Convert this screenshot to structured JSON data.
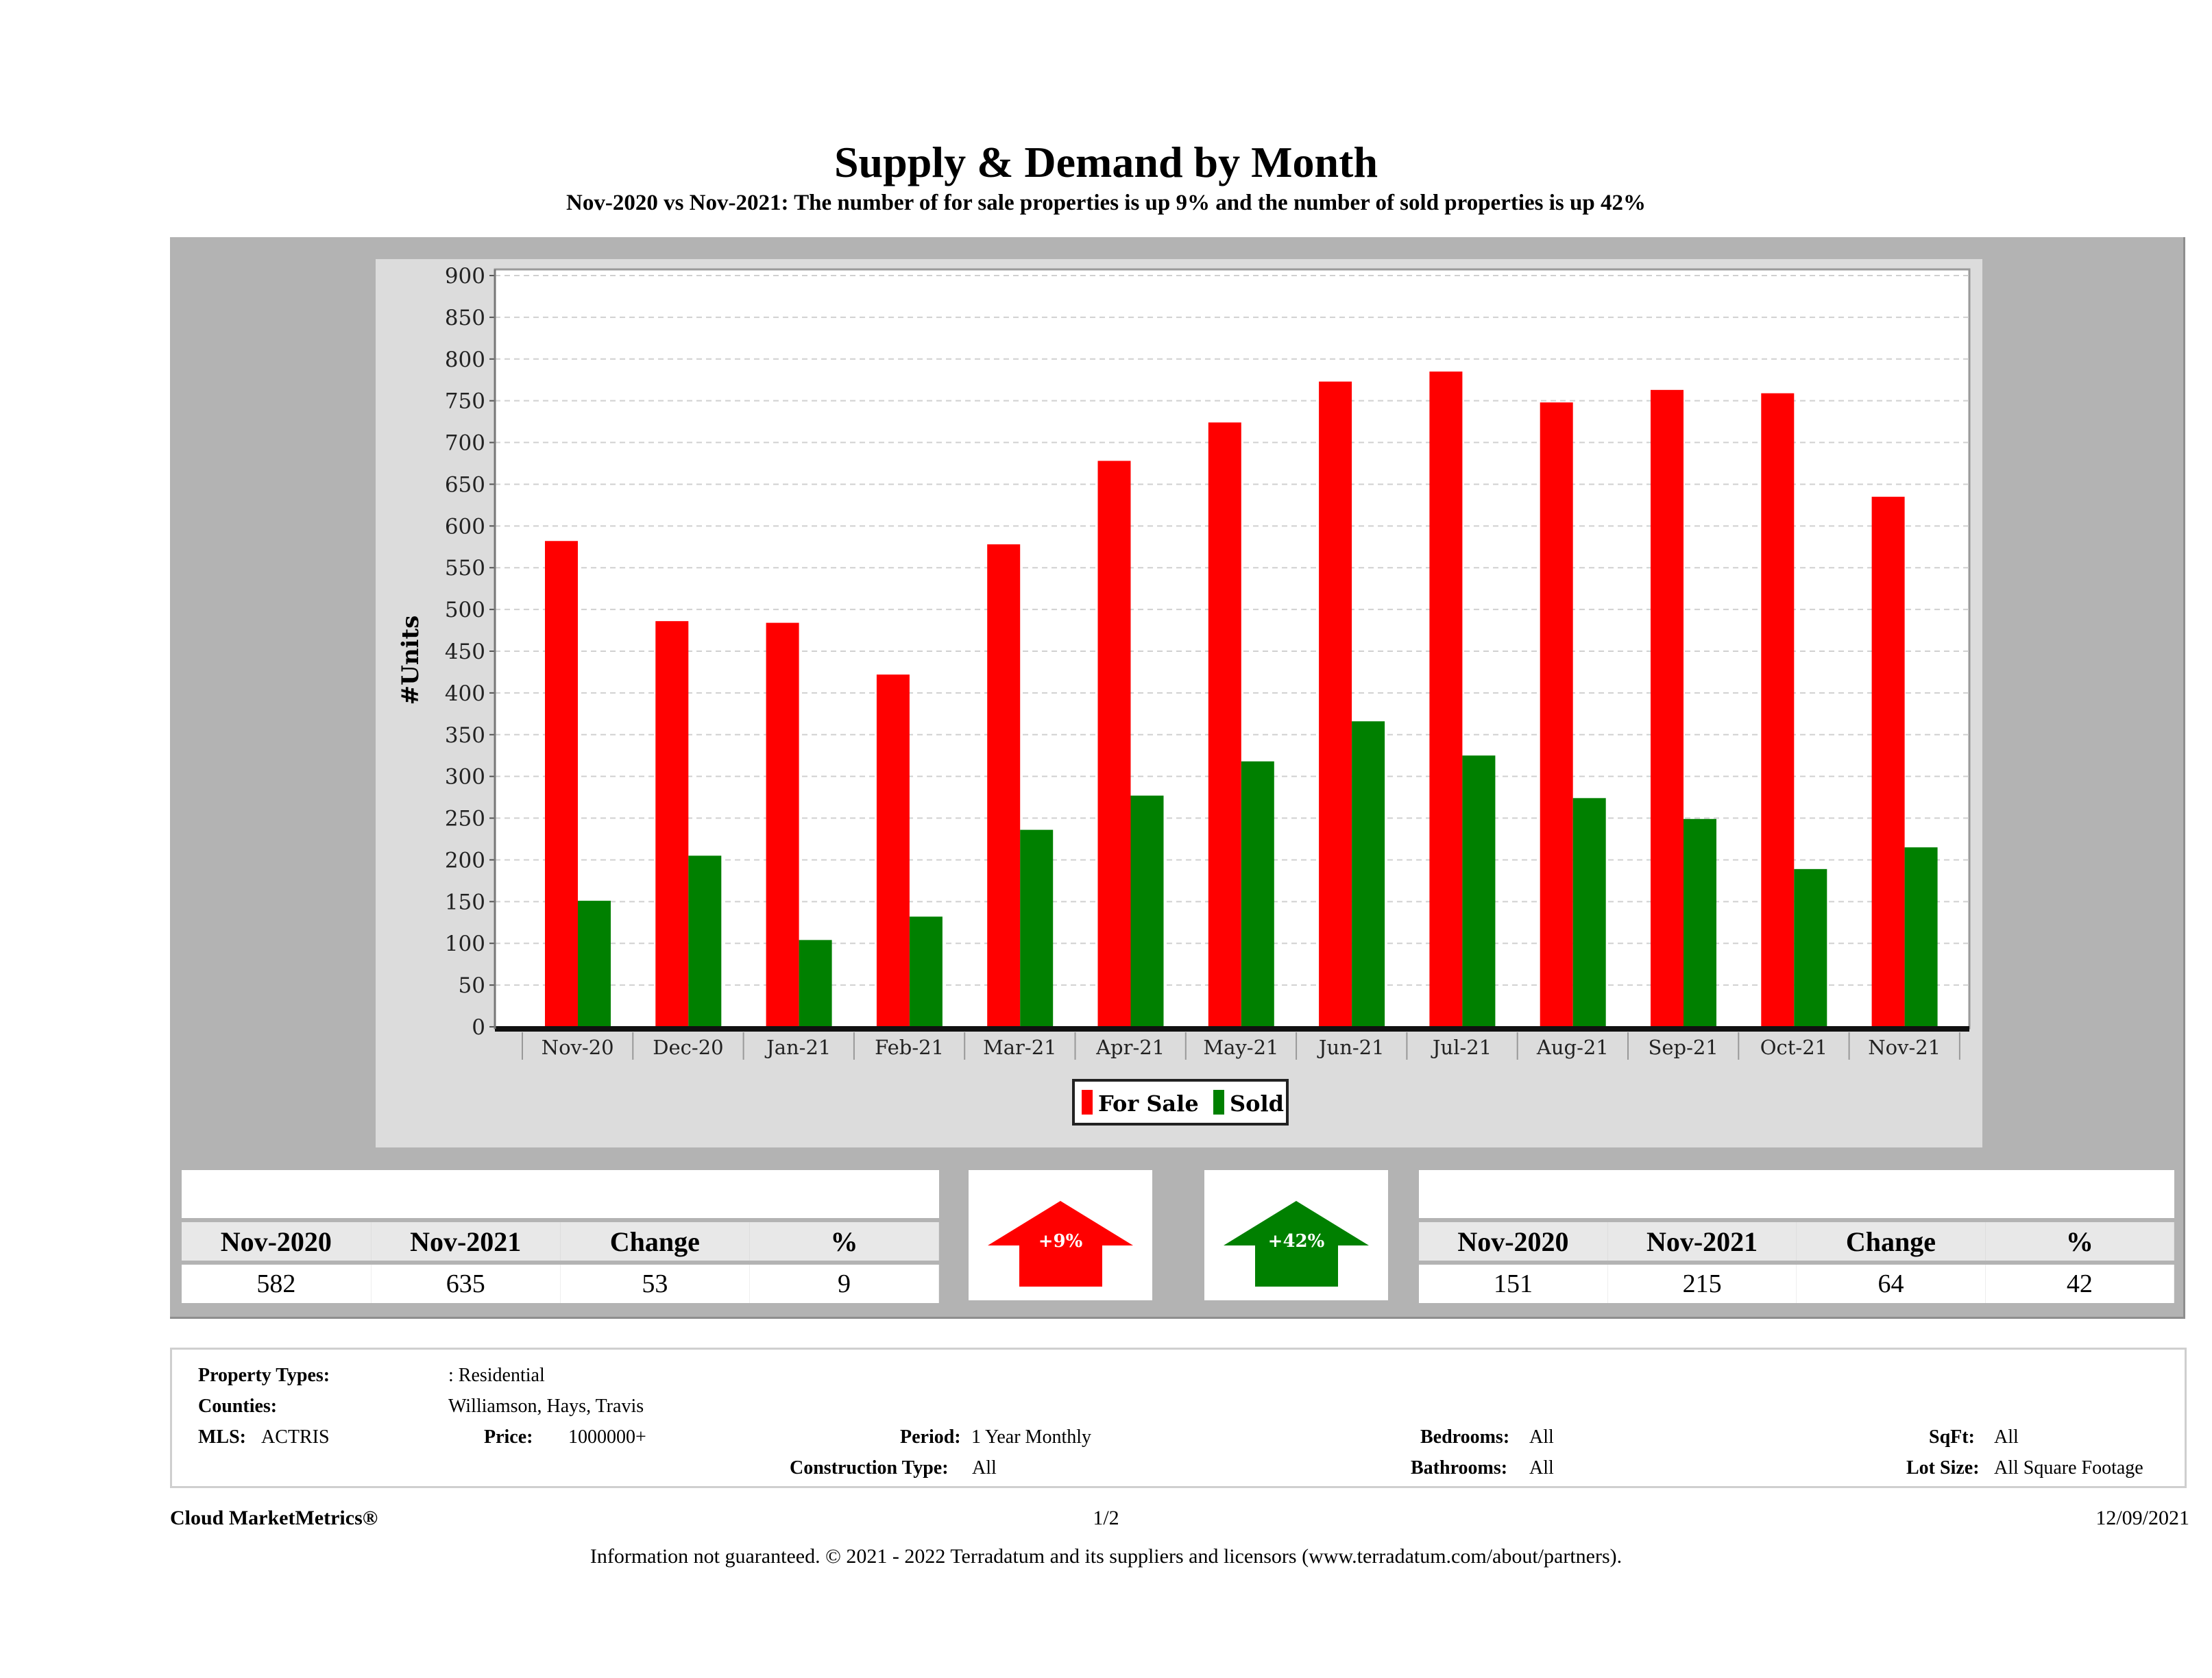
{
  "header": {
    "title": "Supply & Demand by Month",
    "subtitle": "Nov-2020 vs Nov-2021: The number of for sale properties is up 9% and the number of sold properties is up 42%"
  },
  "chart_data": {
    "type": "bar",
    "title": "Supply & Demand by Month",
    "ylabel": "#Units",
    "xlabel": "",
    "ylim": [
      0,
      900
    ],
    "yticks": [
      "0",
      "50",
      "100",
      "150",
      "200",
      "250",
      "300",
      "350",
      "400",
      "450",
      "500",
      "550",
      "600",
      "650",
      "700",
      "750",
      "800",
      "850",
      "900"
    ],
    "grid": true,
    "legend_position": "bottom-center",
    "categories": [
      "Nov-20",
      "Dec-20",
      "Jan-21",
      "Feb-21",
      "Mar-21",
      "Apr-21",
      "May-21",
      "Jun-21",
      "Jul-21",
      "Aug-21",
      "Sep-21",
      "Oct-21",
      "Nov-21"
    ],
    "series": [
      {
        "name": "For Sale",
        "color": "#ff0000",
        "values": [
          582,
          486,
          484,
          422,
          578,
          678,
          724,
          773,
          785,
          748,
          763,
          759,
          635
        ]
      },
      {
        "name": "Sold",
        "color": "#008000",
        "values": [
          151,
          205,
          104,
          132,
          236,
          277,
          318,
          366,
          325,
          274,
          249,
          189,
          215
        ]
      }
    ]
  },
  "for_sale_stats": {
    "headers": [
      "Nov-2020",
      "Nov-2021",
      "Change",
      "%"
    ],
    "values": [
      "582",
      "635",
      "53",
      "9"
    ],
    "badge": "+9%",
    "badge_color": "#ff0000",
    "icon": "arrow-up-icon"
  },
  "sold_stats": {
    "headers": [
      "Nov-2020",
      "Nov-2021",
      "Change",
      "%"
    ],
    "values": [
      "151",
      "215",
      "64",
      "42"
    ],
    "badge": "+42%",
    "badge_color": "#008000",
    "icon": "arrow-up-icon"
  },
  "criteria": {
    "property_types_label": "Property Types:",
    "property_types_value": ": Residential",
    "counties_label": "Counties:",
    "counties_value": "Williamson, Hays, Travis",
    "mls_label": "MLS:",
    "mls_value": "ACTRIS",
    "price_label": "Price:",
    "price_value": "1000000+",
    "period_label": "Period:",
    "period_value": "1 Year Monthly",
    "construction_label": "Construction Type:",
    "construction_value": "All",
    "bedrooms_label": "Bedrooms:",
    "bedrooms_value": "All",
    "bathrooms_label": "Bathrooms:",
    "bathrooms_value": "All",
    "sqft_label": "SqFt:",
    "sqft_value": "All",
    "lot_size_label": "Lot Size:",
    "lot_size_value": "All Square Footage"
  },
  "footer": {
    "brand": "Cloud MarketMetrics®",
    "page": "1/2",
    "date": "12/09/2021",
    "disclaimer": "Information not guaranteed. © 2021 - 2022 Terradatum and its suppliers and licensors (www.terradatum.com/about/partners)."
  }
}
